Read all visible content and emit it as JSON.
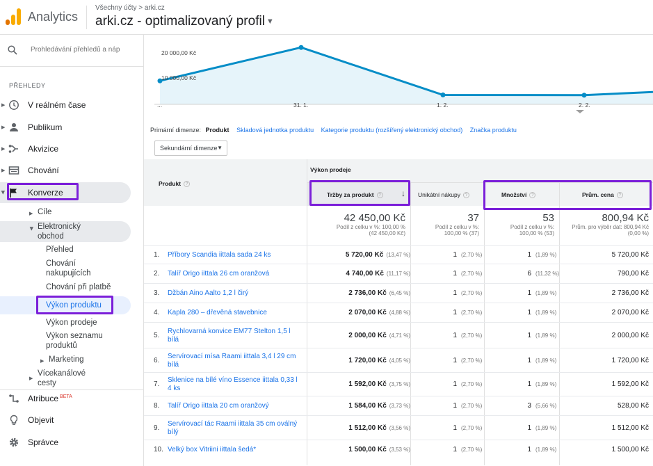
{
  "header": {
    "app_name": "Analytics",
    "breadcrumb": "Všechny účty > arki.cz",
    "profile": "arki.cz - optimalizovaný profil",
    "logo_colors": [
      "#e37400",
      "#f9ab00",
      "#f9ab00"
    ]
  },
  "sidebar": {
    "search_placeholder": "Prohledávání přehledů a náp",
    "section_label": "PŘEHLEDY",
    "nav": [
      {
        "label": "V reálném čase",
        "icon": "clock-icon"
      },
      {
        "label": "Publikum",
        "icon": "person-icon"
      },
      {
        "label": "Akvizice",
        "icon": "acquisition-icon"
      },
      {
        "label": "Chování",
        "icon": "behavior-icon"
      },
      {
        "label": "Konverze",
        "icon": "flag-icon"
      }
    ],
    "sub": {
      "cile": "Cíle",
      "ecommerce": "Elektronický obchod",
      "prehled": "Přehled",
      "chovani_nakup": "Chování nakupujících",
      "chovani_platba": "Chování při platbě",
      "vykon_produktu": "Výkon produktu",
      "vykon_prodeje": "Výkon prodeje",
      "vykon_seznamu": "Výkon seznamu produktů",
      "marketing": "Marketing",
      "vicekanalove": "Vícekanálové cesty"
    },
    "bottom": [
      {
        "label": "Atribuce",
        "icon": "attribution-icon",
        "badge": "BETA"
      },
      {
        "label": "Objevit",
        "icon": "lightbulb-icon"
      },
      {
        "label": "Správce",
        "icon": "gear-icon"
      }
    ]
  },
  "chart_data": {
    "type": "line",
    "y_ticks": [
      "20 000,00 Kč",
      "10 000,00 Kč"
    ],
    "x_ticks": [
      "...",
      "31. 1.",
      "1. 2.",
      "2. 2."
    ],
    "values": [
      9500,
      23000,
      3800,
      3700,
      5000
    ],
    "ylim": [
      0,
      27000
    ],
    "color": "#058dc7"
  },
  "dimensions": {
    "label": "Primární dimenze:",
    "selected": "Produkt",
    "options": [
      "Skladová jednotka produktu",
      "Kategorie produktu (rozšířený elektronický obchod)",
      "Značka produktu"
    ],
    "secondary": "Sekundární dimenze"
  },
  "table": {
    "group_header": "Výkon prodeje",
    "columns": {
      "product": "Produkt",
      "revenue": "Tržby za produkt",
      "unique": "Unikátní nákupy",
      "qty": "Množství",
      "avg": "Prům. cena"
    },
    "totals": {
      "revenue": "42 450,00 Kč",
      "revenue_note1": "Podíl z celku v %: 100,00 %",
      "revenue_note2": "(42 450,00 Kč)",
      "unique": "37",
      "unique_note1": "Podíl z celku v %:",
      "unique_note2": "100,00 % (37)",
      "qty": "53",
      "qty_note1": "Podíl z celku v %:",
      "qty_note2": "100,00 % (53)",
      "avg": "800,94 Kč",
      "avg_note1": "Prům. pro výběr dat: 800,94 Kč",
      "avg_note2": "(0,00 %)"
    },
    "rows": [
      {
        "n": "1.",
        "product": "Příbory Scandia iittala sada 24 ks",
        "rev": "5 720,00 Kč",
        "rev_p": "(13,47 %)",
        "u": "1",
        "u_p": "(2,70 %)",
        "q": "1",
        "q_p": "(1,89 %)",
        "avg": "5 720,00 Kč"
      },
      {
        "n": "2.",
        "product": "Talíř Origo iittala 26 cm oranžová",
        "rev": "4 740,00 Kč",
        "rev_p": "(11,17 %)",
        "u": "1",
        "u_p": "(2,70 %)",
        "q": "6",
        "q_p": "(11,32 %)",
        "avg": "790,00 Kč"
      },
      {
        "n": "3.",
        "product": "Džbán Aino Aalto 1,2 l čirý",
        "rev": "2 736,00 Kč",
        "rev_p": "(6,45 %)",
        "u": "1",
        "u_p": "(2,70 %)",
        "q": "1",
        "q_p": "(1,89 %)",
        "avg": "2 736,00 Kč"
      },
      {
        "n": "4.",
        "product": "Kapla 280 – dřevěná stavebnice",
        "rev": "2 070,00 Kč",
        "rev_p": "(4,88 %)",
        "u": "1",
        "u_p": "(2,70 %)",
        "q": "1",
        "q_p": "(1,89 %)",
        "avg": "2 070,00 Kč"
      },
      {
        "n": "5.",
        "product": "Rychlovarná konvice EM77 Stelton 1,5 l bílá",
        "rev": "2 000,00 Kč",
        "rev_p": "(4,71 %)",
        "u": "1",
        "u_p": "(2,70 %)",
        "q": "1",
        "q_p": "(1,89 %)",
        "avg": "2 000,00 Kč"
      },
      {
        "n": "6.",
        "product": "Servírovací mísa Raami iittala 3,4 l 29 cm bílá",
        "rev": "1 720,00 Kč",
        "rev_p": "(4,05 %)",
        "u": "1",
        "u_p": "(2,70 %)",
        "q": "1",
        "q_p": "(1,89 %)",
        "avg": "1 720,00 Kč"
      },
      {
        "n": "7.",
        "product": "Sklenice na bílé víno Essence iittala 0,33 l 4 ks",
        "rev": "1 592,00 Kč",
        "rev_p": "(3,75 %)",
        "u": "1",
        "u_p": "(2,70 %)",
        "q": "1",
        "q_p": "(1,89 %)",
        "avg": "1 592,00 Kč"
      },
      {
        "n": "8.",
        "product": "Talíř Origo iittala 20 cm oranžový",
        "rev": "1 584,00 Kč",
        "rev_p": "(3,73 %)",
        "u": "1",
        "u_p": "(2,70 %)",
        "q": "3",
        "q_p": "(5,66 %)",
        "avg": "528,00 Kč"
      },
      {
        "n": "9.",
        "product": "Servírovací tác Raami iittala 35 cm oválný bílý",
        "rev": "1 512,00 Kč",
        "rev_p": "(3,56 %)",
        "u": "1",
        "u_p": "(2,70 %)",
        "q": "1",
        "q_p": "(1,89 %)",
        "avg": "1 512,00 Kč"
      },
      {
        "n": "10.",
        "product": "Velký box Vitriini iittala šedá*",
        "rev": "1 500,00 Kč",
        "rev_p": "(3,53 %)",
        "u": "1",
        "u_p": "(2,70 %)",
        "q": "1",
        "q_p": "(1,89 %)",
        "avg": "1 500,00 Kč"
      }
    ]
  }
}
